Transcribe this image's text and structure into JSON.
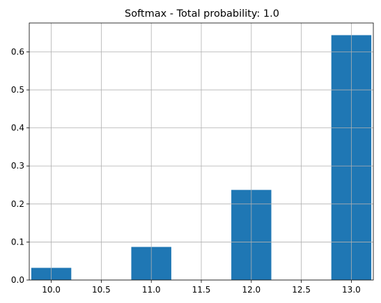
{
  "chart_data": {
    "type": "bar",
    "title": "Softmax - Total probability: 1.0",
    "xlabel": "",
    "ylabel": "",
    "x": [
      10.0,
      11.0,
      12.0,
      13.0
    ],
    "values": [
      0.032,
      0.087,
      0.237,
      0.644
    ],
    "bar_width": 0.4,
    "xlim": [
      9.78,
      13.22
    ],
    "ylim": [
      0,
      0.676
    ],
    "xticks": [
      "10.0",
      "10.5",
      "11.0",
      "11.5",
      "12.0",
      "12.5",
      "13.0"
    ],
    "xtick_values": [
      10.0,
      10.5,
      11.0,
      11.5,
      12.0,
      12.5,
      13.0
    ],
    "yticks": [
      "0.0",
      "0.1",
      "0.2",
      "0.3",
      "0.4",
      "0.5",
      "0.6"
    ],
    "ytick_values": [
      0.0,
      0.1,
      0.2,
      0.3,
      0.4,
      0.5,
      0.6
    ],
    "grid": true,
    "colors": {
      "bar": "#1f77b4",
      "grid": "#b0b0b0",
      "axes": "#000000"
    }
  }
}
